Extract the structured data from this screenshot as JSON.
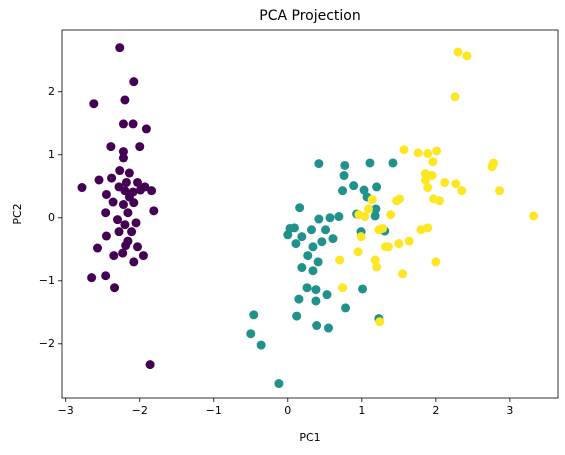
{
  "chart_data": {
    "type": "scatter",
    "title": "PCA Projection",
    "x_label": "PC1",
    "y_label": "PC2",
    "xlim": [
      -3.05,
      3.65
    ],
    "ylim": [
      -2.86,
      2.98
    ],
    "xticks": [
      {
        "value": -3,
        "label": "−3"
      },
      {
        "value": -2,
        "label": "−2"
      },
      {
        "value": -1,
        "label": "−1"
      },
      0,
      1,
      2,
      3
    ],
    "yticks": [
      {
        "value": -2,
        "label": "−2"
      },
      {
        "value": -1,
        "label": "−1"
      },
      0,
      1,
      2
    ],
    "grid": false,
    "series": [
      {
        "color": "#440154",
        "x": [
          -2.27,
          -2.08,
          -2.62,
          -2.2,
          -2.22,
          -2.09,
          -2.39,
          -2.0,
          -1.91,
          -2.22,
          -2.22,
          -2.55,
          -2.78,
          -2.27,
          -2.14,
          -2.38,
          -2.18,
          -2.03,
          -1.93,
          -1.84,
          -2.28,
          -2.2,
          -2.09,
          -1.99,
          -2.45,
          -2.36,
          -2.14,
          -2.22,
          -2.08,
          -2.46,
          -2.16,
          -1.81,
          -2.3,
          -2.2,
          -2.05,
          -2.28,
          -2.11,
          -2.45,
          -2.16,
          -2.57,
          -2.19,
          -2.03,
          -2.23,
          -1.95,
          -2.35,
          -2.08,
          -2.46,
          -2.65,
          -2.34,
          -1.86
        ],
        "values": [
          2.7,
          2.16,
          1.81,
          1.87,
          1.49,
          1.49,
          1.13,
          1.13,
          1.41,
          1.05,
          0.95,
          0.6,
          0.48,
          0.75,
          0.71,
          0.63,
          0.56,
          0.56,
          0.49,
          0.43,
          0.49,
          0.43,
          0.41,
          0.44,
          0.37,
          0.25,
          0.33,
          0.21,
          0.24,
          0.08,
          0.08,
          0.11,
          -0.03,
          -0.11,
          -0.08,
          -0.22,
          -0.22,
          -0.29,
          -0.37,
          -0.48,
          -0.44,
          -0.46,
          -0.56,
          -0.6,
          -0.6,
          -0.7,
          -0.92,
          -0.95,
          -1.11,
          -2.33
        ]
      },
      {
        "color": "#21918c",
        "x": [
          -0.12,
          -0.36,
          -0.5,
          -0.46,
          0.39,
          0.55,
          0.12,
          0.15,
          0.38,
          0.78,
          1.23,
          0.26,
          0.38,
          1.01,
          0.53,
          0.19,
          0.34,
          0.27,
          0.41,
          0.34,
          0.11,
          0.19,
          0.0,
          0.03,
          0.09,
          0.61,
          0.46,
          0.51,
          0.57,
          0.69,
          0.16,
          0.42,
          0.32,
          0.93,
          0.74,
          0.89,
          1.07,
          0.42,
          0.77,
          1.11,
          1.42,
          1.03,
          1.2,
          0.76,
          1.18,
          1.31,
          1.19,
          0.99
        ],
        "values": [
          -2.63,
          -2.02,
          -1.84,
          -1.54,
          -1.71,
          -1.75,
          -1.56,
          -1.29,
          -1.32,
          -1.43,
          -1.6,
          -1.11,
          -1.14,
          -1.13,
          -1.22,
          -0.79,
          -0.84,
          -0.6,
          -0.7,
          -0.46,
          -0.41,
          -0.3,
          -0.27,
          -0.17,
          -0.16,
          -0.33,
          -0.38,
          -0.19,
          0.0,
          0.02,
          0.16,
          -0.02,
          -0.19,
          0.06,
          0.43,
          0.51,
          0.33,
          0.86,
          0.83,
          0.87,
          0.87,
          0.44,
          0.49,
          0.67,
          0.03,
          -0.21,
          0.14,
          -0.22
        ]
      },
      {
        "color": "#fde725",
        "x": [
          2.3,
          2.42,
          2.26,
          1.57,
          1.76,
          1.96,
          1.89,
          2.01,
          2.78,
          2.76,
          1.86,
          1.95,
          1.86,
          1.89,
          2.12,
          2.27,
          2.35,
          2.86,
          1.97,
          2.05,
          1.51,
          1.47,
          1.14,
          0.96,
          1.04,
          1.23,
          1.28,
          1.36,
          1.5,
          1.64,
          1.89,
          1.8,
          0.99,
          0.95,
          1.32,
          1.18,
          1.2,
          1.55,
          2.0,
          0.7,
          0.74,
          1.24,
          3.32,
          1.09,
          1.39
        ],
        "values": [
          2.63,
          2.57,
          1.92,
          1.08,
          1.03,
          0.89,
          1.02,
          1.06,
          0.87,
          0.81,
          0.7,
          0.67,
          0.6,
          0.48,
          0.56,
          0.54,
          0.43,
          0.43,
          0.3,
          0.27,
          0.3,
          0.27,
          0.29,
          0.05,
          0.02,
          -0.19,
          -0.17,
          -0.46,
          -0.41,
          -0.37,
          -0.16,
          -0.19,
          -0.3,
          -0.54,
          -0.46,
          -0.67,
          -0.78,
          -0.89,
          -0.7,
          -0.67,
          -1.11,
          -1.65,
          0.03,
          0.14,
          0.05
        ]
      }
    ]
  }
}
